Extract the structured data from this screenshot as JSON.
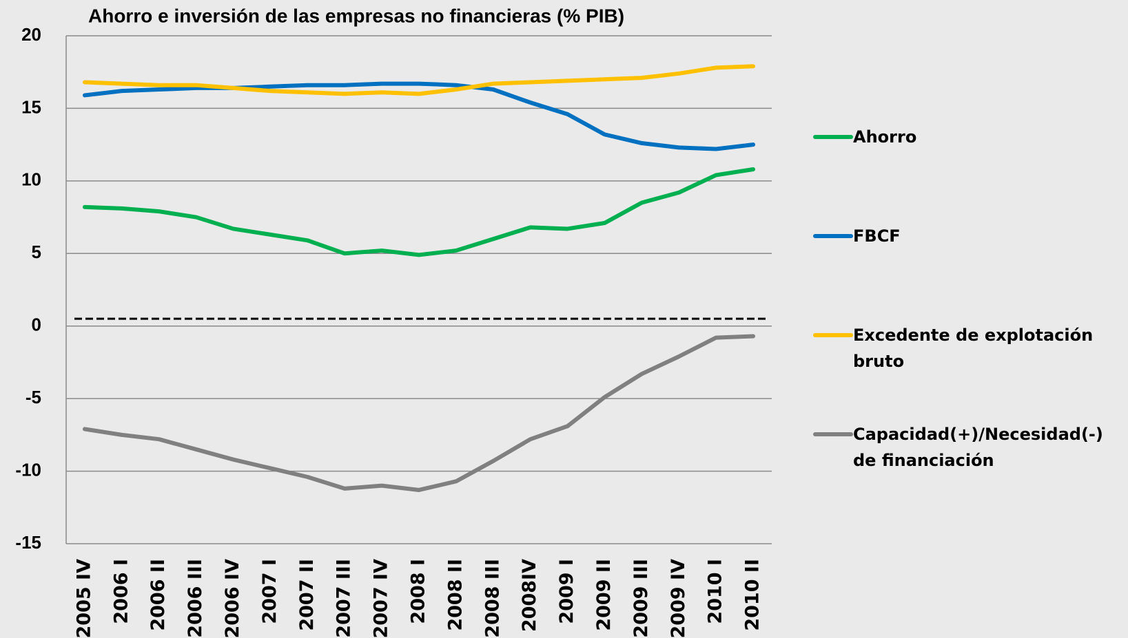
{
  "chart_data": {
    "type": "line",
    "title": "Ahorro e inversión de las empresas no financieras (% PIB)",
    "categories": [
      "2005 IV",
      "2006 I",
      "2006 II",
      "2006 III",
      "2006 IV",
      "2007 I",
      "2007 II",
      "2007 III",
      "2007 IV",
      "2008 I",
      "2008 II",
      "2008 III",
      "2008IV",
      "2009 I",
      "2009 II",
      "2009 III",
      "2009 IV",
      "2010 I",
      "2010 II"
    ],
    "series": [
      {
        "name": "Ahorro",
        "color": "#00b050",
        "values": [
          8.2,
          8.1,
          7.9,
          7.5,
          6.7,
          6.3,
          5.9,
          5.0,
          5.2,
          4.9,
          5.2,
          6.0,
          6.8,
          6.7,
          7.1,
          8.5,
          9.2,
          10.4,
          10.8
        ]
      },
      {
        "name": "FBCF",
        "color": "#0070c0",
        "values": [
          15.9,
          16.2,
          16.3,
          16.4,
          16.4,
          16.5,
          16.6,
          16.6,
          16.7,
          16.7,
          16.6,
          16.3,
          15.4,
          14.6,
          13.2,
          12.6,
          12.3,
          12.2,
          12.5
        ]
      },
      {
        "name": "Excedente de explotación bruto",
        "color": "#ffc000",
        "values": [
          16.8,
          16.7,
          16.6,
          16.6,
          16.4,
          16.2,
          16.1,
          16.0,
          16.1,
          16.0,
          16.3,
          16.7,
          16.8,
          16.9,
          17.0,
          17.1,
          17.4,
          17.8,
          17.9
        ]
      },
      {
        "name": "Capacidad(+)/Necesidad(-) de financiación",
        "color": "#808080",
        "values": [
          -7.1,
          -7.5,
          -7.8,
          -8.5,
          -9.2,
          -9.8,
          -10.4,
          -11.2,
          -11.0,
          -11.3,
          -10.7,
          -9.3,
          -7.8,
          -6.9,
          -4.9,
          -3.3,
          -2.1,
          -0.8,
          -0.7
        ]
      }
    ],
    "ylim": [
      -15,
      20
    ],
    "yticks": [
      -15,
      -10,
      -5,
      0,
      5,
      10,
      15,
      20
    ],
    "grid": true,
    "reference_line": 0.5,
    "legend": "right"
  }
}
